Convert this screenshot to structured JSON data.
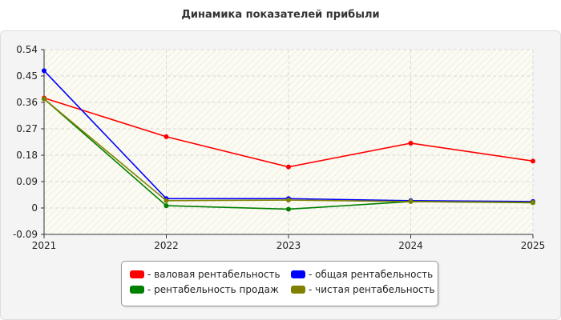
{
  "title": "Динамика показателей прибыли",
  "chart_data": {
    "type": "line",
    "title": "Динамика показателей прибыли",
    "x": [
      "2021",
      "2022",
      "2023",
      "2024",
      "2025"
    ],
    "ylim": [
      -0.09,
      0.54
    ],
    "yticks": [
      "-0.09",
      "0",
      "0.09",
      "0.18",
      "0.27",
      "0.36",
      "0.45",
      "0.54"
    ],
    "grid": true,
    "legend_position": "bottom",
    "series": [
      {
        "name": "валовая рентабельность",
        "color": "#ff0000",
        "values": [
          0.375,
          0.243,
          0.14,
          0.221,
          0.16
        ]
      },
      {
        "name": "общая рентабельность",
        "color": "#0000ff",
        "values": [
          0.468,
          0.032,
          0.032,
          0.025,
          0.022
        ]
      },
      {
        "name": "рентабельность продаж",
        "color": "#008000",
        "values": [
          0.372,
          0.008,
          -0.004,
          0.022,
          0.018
        ]
      },
      {
        "name": "чистая рентабельность",
        "color": "#808000",
        "values": [
          0.372,
          0.025,
          0.027,
          0.022,
          0.019
        ]
      }
    ]
  }
}
